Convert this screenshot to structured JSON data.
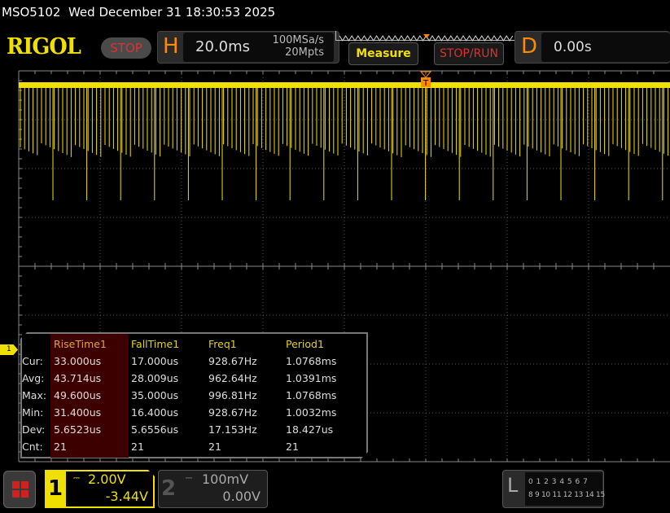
{
  "status_bar": {
    "title": "MSO5102  Wed December 31 18:30:53 2025"
  },
  "header": {
    "logo": "RIGOL",
    "run_state": "STOP",
    "horizontal": {
      "letter": "H",
      "timebase": "20.0ms",
      "sample_rate": "100MSa/s",
      "memory_depth": "20Mpts"
    },
    "measure_label": "Measure",
    "stop_run_label": "STOP/RUN",
    "delay": {
      "letter": "D",
      "value": "0.00s"
    }
  },
  "trigger_marker": "T",
  "colors": {
    "ch1": "#f0e000",
    "grid": "#5a5a5a",
    "run_state": "#e03030",
    "accent": "#ff8a00"
  },
  "measurements": {
    "row_labels": [
      "Cur:",
      "Avg:",
      "Max:",
      "Min:",
      "Dev:",
      "Cnt:"
    ],
    "columns": [
      {
        "name": "RiseTime1",
        "selected": true,
        "values": [
          "33.000us",
          "43.714us",
          "49.600us",
          "31.400us",
          "5.6523us",
          "21"
        ]
      },
      {
        "name": "FallTime1",
        "values": [
          "17.000us",
          "28.009us",
          "35.000us",
          "16.400us",
          "5.6556us",
          "21"
        ]
      },
      {
        "name": "Freq1",
        "values": [
          "928.67Hz",
          "962.64Hz",
          "996.81Hz",
          "928.67Hz",
          "17.153Hz",
          "21"
        ]
      },
      {
        "name": "Period1",
        "values": [
          "1.0768ms",
          "1.0391ms",
          "1.0768ms",
          "1.0032ms",
          "18.427us",
          "21"
        ]
      }
    ]
  },
  "ch1_marker": "1",
  "channels": [
    {
      "num": "1",
      "scale": "2.00V",
      "offset": "-3.44V",
      "active": true
    },
    {
      "num": "2",
      "scale": "100mV",
      "offset": "0.00V",
      "active": false
    }
  ],
  "logic": {
    "letter": "L",
    "row1": "0 1 2 3  4 5 6 7",
    "row2": "8 9 10 11 12 13 14 15"
  }
}
